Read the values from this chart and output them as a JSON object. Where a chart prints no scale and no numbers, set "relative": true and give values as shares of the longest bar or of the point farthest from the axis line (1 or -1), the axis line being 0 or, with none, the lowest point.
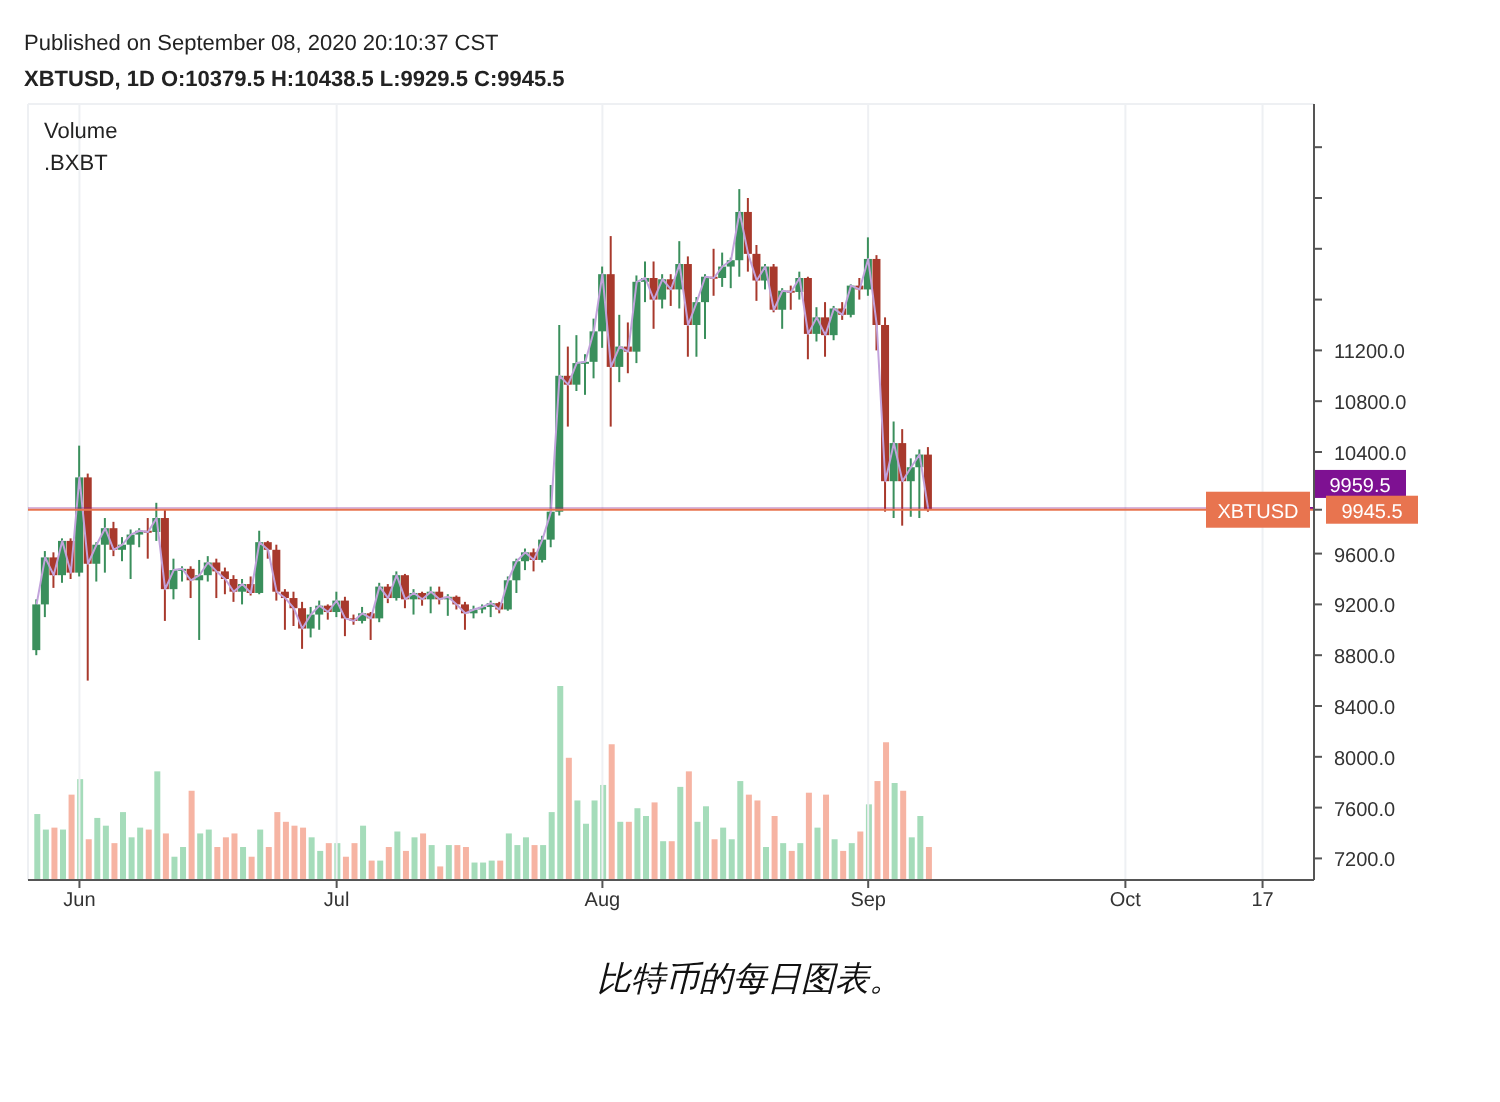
{
  "chart_data": [
    {
      "type": "candlestick",
      "annotations": [
        "Published on September 08, 2020 20:10:37 CST",
        "XBTUSD, 1D O:10379.5 H:10438.5 L:9929.5 C:9945.5",
        "Volume",
        ".BXBT",
        "比特币的每日图表。"
      ],
      "x": [
        "2020-05-27",
        "2020-05-28",
        "2020-05-29",
        "2020-05-30",
        "2020-05-31",
        "2020-06-01",
        "2020-06-02",
        "2020-06-03",
        "2020-06-04",
        "2020-06-05",
        "2020-06-06",
        "2020-06-07",
        "2020-06-08",
        "2020-06-09",
        "2020-06-10",
        "2020-06-11",
        "2020-06-12",
        "2020-06-13",
        "2020-06-14",
        "2020-06-15",
        "2020-06-16",
        "2020-06-17",
        "2020-06-18",
        "2020-06-19",
        "2020-06-20",
        "2020-06-21",
        "2020-06-22",
        "2020-06-23",
        "2020-06-24",
        "2020-06-25",
        "2020-06-26",
        "2020-06-27",
        "2020-06-28",
        "2020-06-29",
        "2020-06-30",
        "2020-07-01",
        "2020-07-02",
        "2020-07-03",
        "2020-07-04",
        "2020-07-05",
        "2020-07-06",
        "2020-07-07",
        "2020-07-08",
        "2020-07-09",
        "2020-07-10",
        "2020-07-11",
        "2020-07-12",
        "2020-07-13",
        "2020-07-14",
        "2020-07-15",
        "2020-07-16",
        "2020-07-17",
        "2020-07-18",
        "2020-07-19",
        "2020-07-20",
        "2020-07-21",
        "2020-07-22",
        "2020-07-23",
        "2020-07-24",
        "2020-07-25",
        "2020-07-26",
        "2020-07-27",
        "2020-07-28",
        "2020-07-29",
        "2020-07-30",
        "2020-07-31",
        "2020-08-01",
        "2020-08-02",
        "2020-08-03",
        "2020-08-04",
        "2020-08-05",
        "2020-08-06",
        "2020-08-07",
        "2020-08-08",
        "2020-08-09",
        "2020-08-10",
        "2020-08-11",
        "2020-08-12",
        "2020-08-13",
        "2020-08-14",
        "2020-08-15",
        "2020-08-16",
        "2020-08-17",
        "2020-08-18",
        "2020-08-19",
        "2020-08-20",
        "2020-08-21",
        "2020-08-22",
        "2020-08-23",
        "2020-08-24",
        "2020-08-25",
        "2020-08-26",
        "2020-08-27",
        "2020-08-28",
        "2020-08-29",
        "2020-08-30",
        "2020-08-31",
        "2020-09-01",
        "2020-09-02",
        "2020-09-03",
        "2020-09-04",
        "2020-09-05",
        "2020-09-06",
        "2020-09-07",
        "2020-09-08"
      ],
      "ohlc": [
        [
          8840,
          9240,
          8800,
          9200
        ],
        [
          9200,
          9620,
          9100,
          9570
        ],
        [
          9570,
          9610,
          9330,
          9430
        ],
        [
          9430,
          9720,
          9370,
          9700
        ],
        [
          9700,
          9720,
          9400,
          9450
        ],
        [
          9450,
          10450,
          9420,
          10200
        ],
        [
          10200,
          10230,
          8600,
          9520
        ],
        [
          9520,
          9690,
          9380,
          9670
        ],
        [
          9670,
          9880,
          9450,
          9800
        ],
        [
          9800,
          9850,
          9580,
          9630
        ],
        [
          9630,
          9730,
          9540,
          9670
        ],
        [
          9670,
          9790,
          9400,
          9750
        ],
        [
          9750,
          9800,
          9650,
          9780
        ],
        [
          9780,
          9880,
          9560,
          9770
        ],
        [
          9770,
          10000,
          9700,
          9880
        ],
        [
          9880,
          9950,
          9070,
          9320
        ],
        [
          9320,
          9560,
          9240,
          9470
        ],
        [
          9470,
          9500,
          9380,
          9480
        ],
        [
          9480,
          9500,
          9250,
          9390
        ],
        [
          9390,
          9550,
          8920,
          9430
        ],
        [
          9430,
          9580,
          9380,
          9530
        ],
        [
          9530,
          9560,
          9250,
          9460
        ],
        [
          9460,
          9490,
          9280,
          9400
        ],
        [
          9400,
          9430,
          9220,
          9300
        ],
        [
          9300,
          9400,
          9200,
          9360
        ],
        [
          9360,
          9420,
          9270,
          9290
        ],
        [
          9290,
          9780,
          9280,
          9690
        ],
        [
          9690,
          9700,
          9560,
          9630
        ],
        [
          9630,
          9670,
          9230,
          9300
        ],
        [
          9300,
          9320,
          9000,
          9250
        ],
        [
          9250,
          9300,
          9030,
          9170
        ],
        [
          9170,
          9220,
          8850,
          9010
        ],
        [
          9010,
          9180,
          8940,
          9120
        ],
        [
          9120,
          9230,
          9000,
          9190
        ],
        [
          9190,
          9200,
          9080,
          9140
        ],
        [
          9140,
          9300,
          9100,
          9230
        ],
        [
          9230,
          9260,
          8950,
          9090
        ],
        [
          9090,
          9120,
          9040,
          9070
        ],
        [
          9070,
          9180,
          9050,
          9130
        ],
        [
          9130,
          9140,
          8920,
          9090
        ],
        [
          9090,
          9370,
          9060,
          9340
        ],
        [
          9340,
          9360,
          9210,
          9250
        ],
        [
          9250,
          9460,
          9230,
          9430
        ],
        [
          9430,
          9440,
          9170,
          9240
        ],
        [
          9240,
          9320,
          9120,
          9290
        ],
        [
          9290,
          9300,
          9190,
          9240
        ],
        [
          9240,
          9340,
          9130,
          9300
        ],
        [
          9300,
          9340,
          9200,
          9240
        ],
        [
          9240,
          9280,
          9110,
          9260
        ],
        [
          9260,
          9270,
          9160,
          9200
        ],
        [
          9200,
          9220,
          9000,
          9130
        ],
        [
          9130,
          9190,
          9090,
          9160
        ],
        [
          9160,
          9200,
          9130,
          9180
        ],
        [
          9180,
          9230,
          9100,
          9210
        ],
        [
          9210,
          9220,
          9130,
          9160
        ],
        [
          9160,
          9420,
          9150,
          9390
        ],
        [
          9390,
          9560,
          9290,
          9540
        ],
        [
          9540,
          9640,
          9470,
          9610
        ],
        [
          9610,
          9640,
          9460,
          9550
        ],
        [
          9550,
          9740,
          9530,
          9710
        ],
        [
          9710,
          10140,
          9650,
          9930
        ],
        [
          9930,
          11400,
          9900,
          11000
        ],
        [
          11000,
          11230,
          10600,
          10930
        ],
        [
          10930,
          11320,
          10880,
          11100
        ],
        [
          11100,
          11170,
          10850,
          11110
        ],
        [
          11110,
          11450,
          10980,
          11350
        ],
        [
          11350,
          11860,
          11220,
          11800
        ],
        [
          11800,
          12100,
          10600,
          11070
        ],
        [
          11070,
          11480,
          10950,
          11230
        ],
        [
          11230,
          11420,
          11020,
          11190
        ],
        [
          11190,
          11790,
          11100,
          11740
        ],
        [
          11740,
          11900,
          11580,
          11770
        ],
        [
          11770,
          11900,
          11370,
          11600
        ],
        [
          11600,
          11800,
          11530,
          11760
        ],
        [
          11760,
          11800,
          11550,
          11680
        ],
        [
          11680,
          12060,
          11530,
          11880
        ],
        [
          11880,
          11940,
          11150,
          11400
        ],
        [
          11400,
          11620,
          11150,
          11580
        ],
        [
          11580,
          11800,
          11290,
          11780
        ],
        [
          11780,
          12000,
          11630,
          11770
        ],
        [
          11770,
          11970,
          11700,
          11860
        ],
        [
          11860,
          11930,
          11690,
          11910
        ],
        [
          11910,
          12470,
          11780,
          12290
        ],
        [
          12290,
          12400,
          11820,
          11960
        ],
        [
          11960,
          12030,
          11590,
          11750
        ],
        [
          11750,
          11880,
          11680,
          11860
        ],
        [
          11860,
          11880,
          11500,
          11520
        ],
        [
          11520,
          11690,
          11370,
          11670
        ],
        [
          11670,
          11710,
          11520,
          11660
        ],
        [
          11660,
          11820,
          11600,
          11770
        ],
        [
          11770,
          11780,
          11130,
          11330
        ],
        [
          11330,
          11540,
          11270,
          11460
        ],
        [
          11460,
          11580,
          11150,
          11320
        ],
        [
          11320,
          11550,
          11280,
          11530
        ],
        [
          11530,
          11580,
          11440,
          11480
        ],
        [
          11480,
          11720,
          11460,
          11710
        ],
        [
          11710,
          11770,
          11600,
          11680
        ],
        [
          11680,
          12090,
          11630,
          11920
        ],
        [
          11920,
          11950,
          11200,
          11400
        ],
        [
          11400,
          11460,
          9930,
          10170
        ],
        [
          10170,
          10640,
          9880,
          10470
        ],
        [
          10470,
          10580,
          9820,
          10170
        ],
        [
          10170,
          10350,
          9890,
          10280
        ],
        [
          10280,
          10420,
          9880,
          10380
        ],
        [
          10379.5,
          10438.5,
          9929.5,
          9945.5
        ]
      ],
      "colors": [
        "#3a8f5c",
        "#3a8f5c",
        "#a8392c",
        "#3a8f5c",
        "#a8392c",
        "#3a8f5c",
        "#a8392c",
        "#3a8f5c",
        "#3a8f5c",
        "#a8392c",
        "#3a8f5c",
        "#3a8f5c",
        "#3a8f5c",
        "#a8392c",
        "#3a8f5c",
        "#a8392c",
        "#3a8f5c",
        "#3a8f5c",
        "#a8392c",
        "#3a8f5c",
        "#3a8f5c",
        "#a8392c",
        "#a8392c",
        "#a8392c",
        "#3a8f5c",
        "#a8392c",
        "#3a8f5c",
        "#a8392c",
        "#a8392c",
        "#a8392c",
        "#a8392c",
        "#a8392c",
        "#3a8f5c",
        "#3a8f5c",
        "#a8392c",
        "#3a8f5c",
        "#a8392c",
        "#a8392c",
        "#3a8f5c",
        "#a8392c",
        "#3a8f5c",
        "#a8392c",
        "#3a8f5c",
        "#a8392c",
        "#3a8f5c",
        "#a8392c",
        "#3a8f5c",
        "#a8392c",
        "#3a8f5c",
        "#a8392c",
        "#a8392c",
        "#3a8f5c",
        "#3a8f5c",
        "#3a8f5c",
        "#a8392c",
        "#3a8f5c",
        "#3a8f5c",
        "#3a8f5c",
        "#a8392c",
        "#3a8f5c",
        "#3a8f5c",
        "#3a8f5c",
        "#a8392c",
        "#3a8f5c",
        "#3a8f5c",
        "#3a8f5c",
        "#3a8f5c",
        "#a8392c",
        "#3a8f5c",
        "#a8392c",
        "#3a8f5c",
        "#3a8f5c",
        "#a8392c",
        "#3a8f5c",
        "#a8392c",
        "#3a8f5c",
        "#a8392c",
        "#3a8f5c",
        "#3a8f5c",
        "#a8392c",
        "#3a8f5c",
        "#3a8f5c",
        "#3a8f5c",
        "#a8392c",
        "#a8392c",
        "#3a8f5c",
        "#a8392c",
        "#3a8f5c",
        "#a8392c",
        "#3a8f5c",
        "#a8392c",
        "#3a8f5c",
        "#a8392c",
        "#3a8f5c",
        "#a8392c",
        "#3a8f5c",
        "#a8392c",
        "#3a8f5c",
        "#a8392c",
        "#a8392c",
        "#3a8f5c",
        "#a8392c",
        "#3a8f5c",
        "#3a8f5c",
        "#a8392c"
      ],
      "series": [
        {
          "type": "line",
          "color": "#c2a3dc",
          "values": [
            9200,
            9570,
            9430,
            9700,
            9450,
            10200,
            9520,
            9670,
            9800,
            9630,
            9670,
            9750,
            9780,
            9770,
            9880,
            9320,
            9470,
            9480,
            9390,
            9430,
            9530,
            9460,
            9400,
            9300,
            9360,
            9290,
            9690,
            9630,
            9300,
            9250,
            9170,
            9010,
            9120,
            9190,
            9140,
            9230,
            9090,
            9070,
            9130,
            9090,
            9340,
            9250,
            9430,
            9240,
            9290,
            9240,
            9300,
            9240,
            9260,
            9200,
            9130,
            9160,
            9180,
            9210,
            9160,
            9390,
            9540,
            9610,
            9550,
            9710,
            9930,
            11000,
            10930,
            11100,
            11110,
            11350,
            11800,
            11070,
            11230,
            11190,
            11740,
            11770,
            11600,
            11760,
            11680,
            11880,
            11400,
            11580,
            11780,
            11770,
            11860,
            11910,
            12290,
            11960,
            11750,
            11860,
            11520,
            11670,
            11660,
            11770,
            11330,
            11460,
            11320,
            11530,
            11480,
            11710,
            11680,
            11920,
            11400,
            10170,
            10470,
            10170,
            10280,
            10380,
            9950
          ]
        }
      ],
      "xlim": [
        "2020-05-26",
        "2020-10-23"
      ],
      "xticks": [
        {
          "value": "2020-06-01",
          "label": "Jun"
        },
        {
          "value": "2020-07-01",
          "label": "Jul"
        },
        {
          "value": "2020-08-01",
          "label": "Aug"
        },
        {
          "value": "2020-09-01",
          "label": "Sep"
        },
        {
          "value": "2020-10-01",
          "label": "Oct"
        },
        {
          "value": "2020-10-17",
          "label": "17"
        }
      ],
      "ylim": [
        7030,
        13140
      ],
      "yticks": [
        {
          "value": 7200,
          "label": "7200.0"
        },
        {
          "value": 7600,
          "label": "7600.0"
        },
        {
          "value": 8000,
          "label": "8000.0"
        },
        {
          "value": 8400,
          "label": "8400.0"
        },
        {
          "value": 8800,
          "label": "8800.0"
        },
        {
          "value": 9200,
          "label": "9200.0"
        },
        {
          "value": 9600,
          "label": "9600.0"
        },
        {
          "value": 9945.5,
          "label": "9945.5"
        },
        {
          "value": 10400,
          "label": "10400.0"
        },
        {
          "value": 10800,
          "label": "10800.0"
        },
        {
          "value": 11200,
          "label": "11200.0"
        },
        {
          "value": 11600,
          "label": null
        },
        {
          "value": 12000,
          "label": null
        },
        {
          "value": 12400,
          "label": null
        },
        {
          "value": 12800,
          "label": null
        }
      ],
      "grid": true,
      "ref_lines": [
        {
          "axis": "y",
          "value": 9945.5,
          "label": "XBTUSD",
          "color": "#e8744f"
        },
        {
          "axis": "y",
          "value": 9959.5,
          "label": "9959.5",
          "color": "#7e1192"
        }
      ]
    },
    {
      "type": "bar",
      "relative": true,
      "tick_labels": false,
      "x": [
        "2020-05-27",
        "2020-05-28",
        "2020-05-29",
        "2020-05-30",
        "2020-05-31",
        "2020-06-01",
        "2020-06-02",
        "2020-06-03",
        "2020-06-04",
        "2020-06-05",
        "2020-06-06",
        "2020-06-07",
        "2020-06-08",
        "2020-06-09",
        "2020-06-10",
        "2020-06-11",
        "2020-06-12",
        "2020-06-13",
        "2020-06-14",
        "2020-06-15",
        "2020-06-16",
        "2020-06-17",
        "2020-06-18",
        "2020-06-19",
        "2020-06-20",
        "2020-06-21",
        "2020-06-22",
        "2020-06-23",
        "2020-06-24",
        "2020-06-25",
        "2020-06-26",
        "2020-06-27",
        "2020-06-28",
        "2020-06-29",
        "2020-06-30",
        "2020-07-01",
        "2020-07-02",
        "2020-07-03",
        "2020-07-04",
        "2020-07-05",
        "2020-07-06",
        "2020-07-07",
        "2020-07-08",
        "2020-07-09",
        "2020-07-10",
        "2020-07-11",
        "2020-07-12",
        "2020-07-13",
        "2020-07-14",
        "2020-07-15",
        "2020-07-16",
        "2020-07-17",
        "2020-07-18",
        "2020-07-19",
        "2020-07-20",
        "2020-07-21",
        "2020-07-22",
        "2020-07-23",
        "2020-07-24",
        "2020-07-25",
        "2020-07-26",
        "2020-07-27",
        "2020-07-28",
        "2020-07-29",
        "2020-07-30",
        "2020-07-31",
        "2020-08-01",
        "2020-08-02",
        "2020-08-03",
        "2020-08-04",
        "2020-08-05",
        "2020-08-06",
        "2020-08-07",
        "2020-08-08",
        "2020-08-09",
        "2020-08-10",
        "2020-08-11",
        "2020-08-12",
        "2020-08-13",
        "2020-08-14",
        "2020-08-15",
        "2020-08-16",
        "2020-08-17",
        "2020-08-18",
        "2020-08-19",
        "2020-08-20",
        "2020-08-21",
        "2020-08-22",
        "2020-08-23",
        "2020-08-24",
        "2020-08-25",
        "2020-08-26",
        "2020-08-27",
        "2020-08-28",
        "2020-08-29",
        "2020-08-30",
        "2020-08-31",
        "2020-09-01",
        "2020-09-02",
        "2020-09-03",
        "2020-09-04",
        "2020-09-05",
        "2020-09-06",
        "2020-09-07",
        "2020-09-08"
      ],
      "xlim": [
        "2020-05-26",
        "2020-10-23"
      ],
      "values": [
        0.34,
        0.26,
        0.27,
        0.26,
        0.44,
        0.52,
        0.21,
        0.32,
        0.28,
        0.19,
        0.35,
        0.22,
        0.27,
        0.26,
        0.56,
        0.24,
        0.12,
        0.17,
        0.46,
        0.24,
        0.26,
        0.17,
        0.22,
        0.24,
        0.17,
        0.12,
        0.26,
        0.17,
        0.35,
        0.3,
        0.28,
        0.27,
        0.22,
        0.15,
        0.19,
        0.19,
        0.12,
        0.19,
        0.28,
        0.1,
        0.1,
        0.17,
        0.25,
        0.15,
        0.22,
        0.24,
        0.18,
        0.07,
        0.18,
        0.18,
        0.17,
        0.09,
        0.09,
        0.1,
        0.1,
        0.24,
        0.18,
        0.22,
        0.18,
        0.18,
        0.35,
        1,
        0.63,
        0.41,
        0.29,
        0.41,
        0.49,
        0.7,
        0.3,
        0.3,
        0.37,
        0.33,
        0.4,
        0.2,
        0.2,
        0.48,
        0.56,
        0.3,
        0.38,
        0.21,
        0.27,
        0.21,
        0.51,
        0.44,
        0.41,
        0.17,
        0.33,
        0.19,
        0.15,
        0.19,
        0.45,
        0.27,
        0.44,
        0.21,
        0.15,
        0.19,
        0.25,
        0.39,
        0.51,
        0.71,
        0.5,
        0.46,
        0.22,
        0.33,
        0.17
      ],
      "colors": [
        "#a5dcba",
        "#a5dcba",
        "#f6b4a3",
        "#a5dcba",
        "#f6b4a3",
        "#a5dcba",
        "#f6b4a3",
        "#a5dcba",
        "#a5dcba",
        "#f6b4a3",
        "#a5dcba",
        "#a5dcba",
        "#a5dcba",
        "#f6b4a3",
        "#a5dcba",
        "#f6b4a3",
        "#a5dcba",
        "#a5dcba",
        "#f6b4a3",
        "#a5dcba",
        "#a5dcba",
        "#f6b4a3",
        "#f6b4a3",
        "#f6b4a3",
        "#a5dcba",
        "#f6b4a3",
        "#a5dcba",
        "#f6b4a3",
        "#f6b4a3",
        "#f6b4a3",
        "#f6b4a3",
        "#f6b4a3",
        "#a5dcba",
        "#a5dcba",
        "#f6b4a3",
        "#a5dcba",
        "#f6b4a3",
        "#f6b4a3",
        "#a5dcba",
        "#f6b4a3",
        "#a5dcba",
        "#f6b4a3",
        "#a5dcba",
        "#f6b4a3",
        "#a5dcba",
        "#f6b4a3",
        "#a5dcba",
        "#f6b4a3",
        "#a5dcba",
        "#f6b4a3",
        "#f6b4a3",
        "#a5dcba",
        "#a5dcba",
        "#a5dcba",
        "#f6b4a3",
        "#a5dcba",
        "#a5dcba",
        "#a5dcba",
        "#f6b4a3",
        "#a5dcba",
        "#a5dcba",
        "#a5dcba",
        "#f6b4a3",
        "#a5dcba",
        "#a5dcba",
        "#a5dcba",
        "#a5dcba",
        "#f6b4a3",
        "#a5dcba",
        "#f6b4a3",
        "#a5dcba",
        "#a5dcba",
        "#f6b4a3",
        "#a5dcba",
        "#f6b4a3",
        "#a5dcba",
        "#f6b4a3",
        "#a5dcba",
        "#a5dcba",
        "#f6b4a3",
        "#a5dcba",
        "#a5dcba",
        "#a5dcba",
        "#f6b4a3",
        "#f6b4a3",
        "#a5dcba",
        "#f6b4a3",
        "#a5dcba",
        "#f6b4a3",
        "#a5dcba",
        "#f6b4a3",
        "#a5dcba",
        "#f6b4a3",
        "#a5dcba",
        "#f6b4a3",
        "#a5dcba",
        "#f6b4a3",
        "#a5dcba",
        "#f6b4a3",
        "#f6b4a3",
        "#a5dcba",
        "#f6b4a3",
        "#a5dcba",
        "#a5dcba",
        "#f6b4a3"
      ]
    }
  ]
}
